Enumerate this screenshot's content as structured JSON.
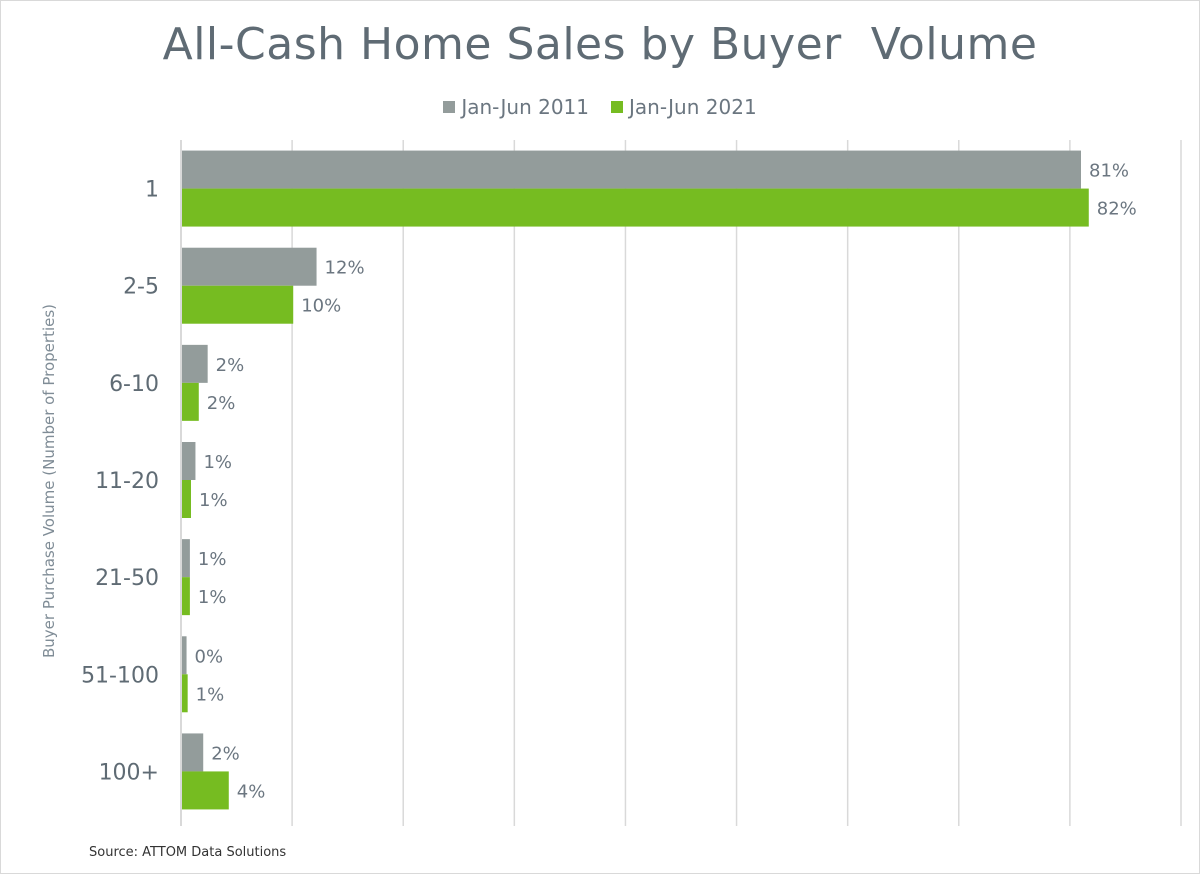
{
  "chart_data": {
    "type": "bar",
    "orientation": "horizontal",
    "title": "All-Cash Home Sales by Buyer  Volume",
    "ylabel": "Buyer Purchase Volume (Number of Properties)",
    "xlabel": "",
    "xlim": [
      0,
      90
    ],
    "grid": true,
    "legend_position": "top",
    "categories": [
      "1",
      "2-5",
      "6-10",
      "11-20",
      "21-50",
      "51-100",
      "100+"
    ],
    "series": [
      {
        "name": "Jan-Jun 2011",
        "color": "#939c9b",
        "values": [
          81,
          12.2,
          2.4,
          1.3,
          0.8,
          0.5,
          2.0
        ],
        "labels": [
          "81%",
          "12%",
          "2%",
          "1%",
          "1%",
          "0%",
          "2%"
        ]
      },
      {
        "name": "Jan-Jun 2021",
        "color": "#76bc21",
        "values": [
          81.7,
          10.1,
          1.6,
          0.9,
          0.8,
          0.6,
          4.3
        ],
        "labels": [
          "82%",
          "10%",
          "2%",
          "1%",
          "1%",
          "1%",
          "4%"
        ]
      }
    ],
    "source": "Source: ATTOM Data Solutions"
  }
}
